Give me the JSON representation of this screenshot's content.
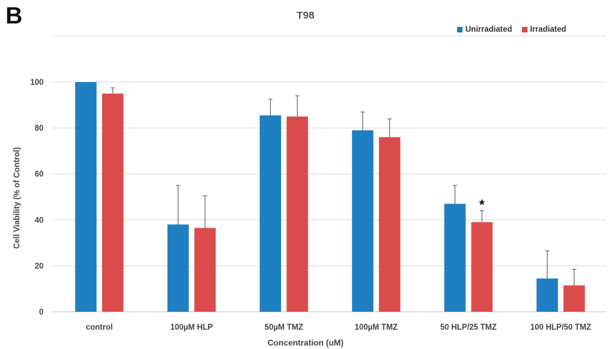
{
  "panel_letter": "B",
  "chart_data": {
    "type": "bar",
    "title": "T98",
    "xlabel": "Concentration (uM)",
    "ylabel": "Cell Viability (% of Control)",
    "ylim": [
      0,
      100
    ],
    "yticks": [
      0,
      20,
      40,
      60,
      80,
      100
    ],
    "grid": true,
    "legend_position": "top-right",
    "categories": [
      "control",
      "100µM HLP",
      "50µM TMZ",
      "100µM TMZ",
      "50 HLP/25 TMZ",
      "100 HLP/50 TMZ"
    ],
    "series": [
      {
        "name": "Unirradiated",
        "color": "#1f7fc3",
        "values": [
          100,
          38,
          85.5,
          79,
          47,
          14.5
        ],
        "errors": [
          0,
          17,
          7,
          8,
          8,
          12
        ]
      },
      {
        "name": "Irradiated",
        "color": "#dc4b4b",
        "values": [
          95,
          36.5,
          85,
          76,
          39,
          11.5
        ],
        "errors": [
          2.5,
          14,
          9,
          8,
          5,
          7
        ]
      }
    ],
    "annotations": [
      {
        "category": "50 HLP/25 TMZ",
        "series": "Irradiated",
        "text": "*"
      }
    ]
  }
}
